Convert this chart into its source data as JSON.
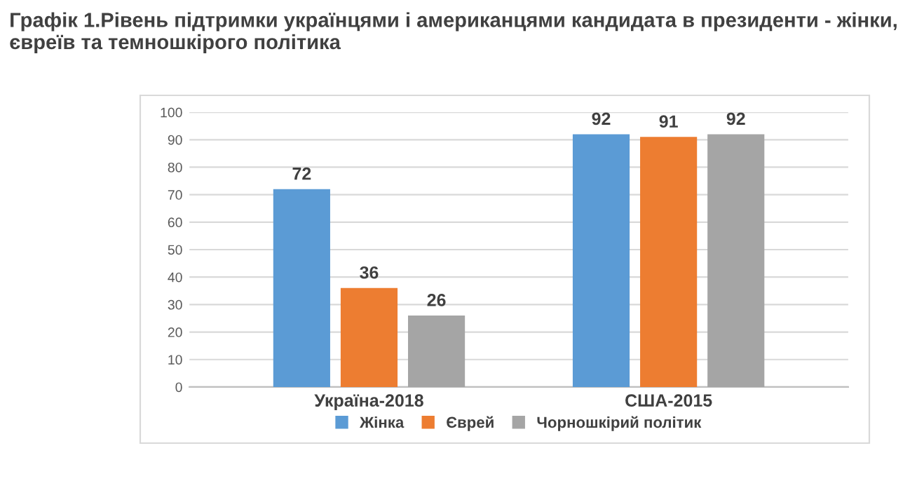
{
  "chart_data": {
    "type": "bar",
    "title": "Графік 1.Рівень підтримки українцями і американцями кандидата в президенти - жінки, євреїв та темношкірого політика",
    "categories": [
      "Україна-2018",
      "США-2015"
    ],
    "series": [
      {
        "name": "Жінка",
        "color": "#5b9bd5",
        "values": [
          72,
          92
        ]
      },
      {
        "name": "Єврей",
        "color": "#ed7d31",
        "values": [
          36,
          91
        ]
      },
      {
        "name": "Чорношкірий політик",
        "color": "#a5a5a5",
        "values": [
          26,
          92
        ]
      }
    ],
    "ylim": [
      0,
      100
    ],
    "yticks": [
      0,
      10,
      20,
      30,
      40,
      50,
      60,
      70,
      80,
      90,
      100
    ],
    "grid": "y",
    "legend": "bottom",
    "data_labels": true
  }
}
